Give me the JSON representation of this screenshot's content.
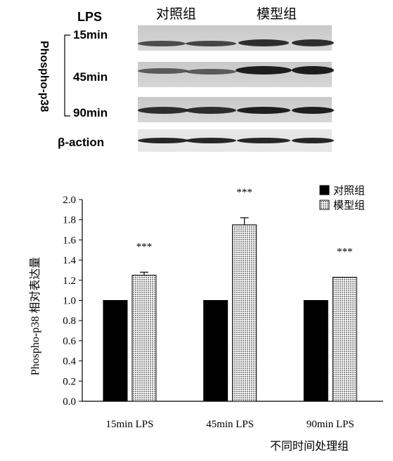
{
  "blot": {
    "header_lps": "LPS",
    "group_control": "对照组",
    "group_model": "模型组",
    "side_label": "Phospho-p38",
    "rows": [
      "15min",
      "45min",
      "90min"
    ],
    "loading_control": "β-action"
  },
  "chart_data": {
    "type": "bar",
    "title": "",
    "xlabel": "不同时间处理组",
    "ylabel": "Phospho-p38 相对表达量",
    "ylim": [
      0,
      2.0
    ],
    "yticks": [
      "0.0",
      "0.2",
      "0.4",
      "0.6",
      "0.8",
      "1.0",
      "1.2",
      "1.4",
      "1.6",
      "1.8",
      "2.0"
    ],
    "categories": [
      "15min LPS",
      "45min LPS",
      "90min LPS"
    ],
    "series": [
      {
        "name": "对照组",
        "values": [
          1.0,
          1.0,
          1.0
        ],
        "errors": [
          0,
          0,
          0
        ],
        "color": "#000000",
        "pattern": "solid"
      },
      {
        "name": "模型组",
        "values": [
          1.25,
          1.75,
          1.23
        ],
        "errors": [
          0.03,
          0.07,
          0.0
        ],
        "color": "#bdbdbd",
        "pattern": "dotted"
      }
    ],
    "annotations": [
      "***",
      "***",
      "***"
    ],
    "legend_position": "top-right",
    "grid": false
  }
}
